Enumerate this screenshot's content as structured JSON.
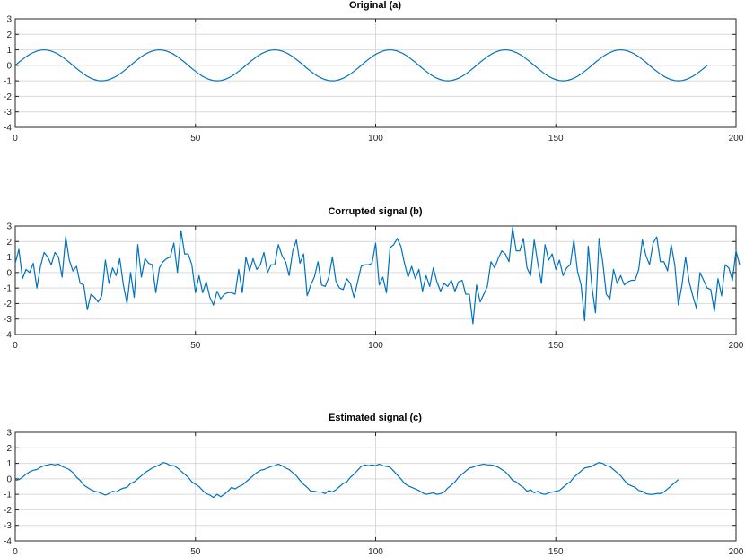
{
  "colors": {
    "series": "#0072BD"
  },
  "chart_data": [
    {
      "type": "line",
      "title": "Original (a)",
      "xlabel": "",
      "ylabel": "",
      "xlim": [
        0,
        200
      ],
      "ylim": [
        -4,
        3
      ],
      "xticks": [
        0,
        50,
        100,
        150,
        200
      ],
      "yticks": [
        3,
        2,
        1,
        0,
        -1,
        -2,
        -3,
        -4
      ],
      "grid": true,
      "series": [
        {
          "y": [
            0,
            0.2,
            0.38,
            0.56,
            0.71,
            0.83,
            0.92,
            0.98,
            1,
            0.98,
            0.92,
            0.83,
            0.71,
            0.56,
            0.38,
            0.2,
            0,
            -0.2,
            -0.38,
            -0.56,
            -0.71,
            -0.83,
            -0.92,
            -0.98,
            -1,
            -0.98,
            -0.92,
            -0.83,
            -0.71,
            -0.56,
            -0.38,
            -0.2,
            0,
            0.2,
            0.38,
            0.56,
            0.71,
            0.83,
            0.92,
            0.98,
            1,
            0.98,
            0.92,
            0.83,
            0.71,
            0.56,
            0.38,
            0.2,
            0,
            -0.2,
            -0.38,
            -0.56,
            -0.71,
            -0.83,
            -0.92,
            -0.98,
            -1,
            -0.98,
            -0.92,
            -0.83,
            -0.71,
            -0.56,
            -0.38,
            -0.2,
            0,
            0.2,
            0.38,
            0.56,
            0.71,
            0.83,
            0.92,
            0.98,
            1,
            0.98,
            0.92,
            0.83,
            0.71,
            0.56,
            0.38,
            0.2,
            0,
            -0.2,
            -0.38,
            -0.56,
            -0.71,
            -0.83,
            -0.92,
            -0.98,
            -1,
            -0.98,
            -0.92,
            -0.83,
            -0.71,
            -0.56,
            -0.38,
            -0.2,
            0,
            0.2,
            0.38,
            0.56,
            0.71,
            0.83,
            0.92,
            0.98,
            1,
            0.98,
            0.92,
            0.83,
            0.71,
            0.56,
            0.38,
            0.2,
            0,
            -0.2,
            -0.38,
            -0.56,
            -0.71,
            -0.83,
            -0.92,
            -0.98,
            -1,
            -0.98,
            -0.92,
            -0.83,
            -0.71,
            -0.56,
            -0.38,
            -0.2,
            0,
            0.2,
            0.38,
            0.56,
            0.71,
            0.83,
            0.92,
            0.98,
            1,
            0.98,
            0.92,
            0.83,
            0.71,
            0.56,
            0.38,
            0.2,
            0,
            -0.2,
            -0.38,
            -0.56,
            -0.71,
            -0.83,
            -0.92,
            -0.98,
            -1,
            -0.98,
            -0.92,
            -0.83,
            -0.71,
            -0.56,
            -0.38,
            -0.2,
            0,
            0.2,
            0.38,
            0.56,
            0.71,
            0.83,
            0.92,
            0.98,
            1,
            0.98,
            0.92,
            0.83,
            0.71,
            0.56,
            0.38,
            0.2,
            0,
            -0.2,
            -0.38,
            -0.56,
            -0.71,
            -0.83,
            -0.92,
            -0.98,
            -1,
            -0.98,
            -0.92,
            -0.83,
            -0.71,
            -0.56,
            -0.38,
            -0.2,
            0
          ]
        }
      ]
    },
    {
      "type": "line",
      "title": "Corrupted signal (b)",
      "xlabel": "",
      "ylabel": "",
      "xlim": [
        0,
        200
      ],
      "ylim": [
        -4,
        3
      ],
      "xticks": [
        0,
        50,
        100,
        150,
        200
      ],
      "yticks": [
        3,
        2,
        1,
        0,
        -1,
        -2,
        -3,
        -4
      ],
      "grid": true,
      "series": [
        {
          "y": [
            0.6,
            1.5,
            -0.4,
            0.2,
            0,
            0.6,
            -1,
            0.4,
            1.3,
            1,
            0.5,
            1.3,
            1,
            -0.3,
            2.3,
            0.8,
            0.1,
            0.4,
            -0.7,
            -0.8,
            -2.4,
            -1.4,
            -1.6,
            -1.9,
            -1.5,
            0.8,
            -0.7,
            0.3,
            -0.2,
            0.9,
            -0.8,
            -2,
            0,
            -1.6,
            1.8,
            -0.3,
            0.9,
            0.6,
            0.5,
            -1.3,
            0.3,
            0.7,
            0.9,
            1,
            1.9,
            0,
            2.7,
            1.2,
            1.2,
            0.5,
            -1.3,
            -0.2,
            -1.3,
            -0.6,
            -1.6,
            -2.1,
            -1.2,
            -1.7,
            -1.4,
            -1.3,
            -1.3,
            -1.4,
            0.2,
            -1.3,
            1,
            0.1,
            0.9,
            0.2,
            0.5,
            1.3,
            0,
            0.5,
            0.5,
            1.8,
            1.1,
            0.7,
            -0.2,
            1.4,
            2.1,
            0.6,
            1.2,
            -1.5,
            -0.8,
            -0.3,
            0.7,
            -0.8,
            -0.9,
            -0.3,
            1,
            -0.6,
            -1,
            -1.1,
            -0.4,
            -0.7,
            -1.6,
            -0.6,
            0.4,
            0.5,
            0.5,
            0.6,
            1.9,
            -0.8,
            -0.3,
            -1.3,
            1.6,
            1.8,
            2.2,
            1.7,
            0.6,
            -0.3,
            0.4,
            -0.4,
            0.2,
            -1.2,
            -0.2,
            -0.9,
            0.3,
            -0.6,
            -1.2,
            -0.7,
            -0.9,
            -0.5,
            -1.2,
            -0.6,
            -0.5,
            -1.4,
            -1.4,
            -3.3,
            -0.8,
            -1.9,
            -1.4,
            -0.9,
            0.7,
            0.3,
            0.9,
            1.4,
            1.2,
            0.7,
            2.9,
            1.4,
            1.4,
            2.2,
            0.3,
            -0.2,
            2.1,
            0.6,
            -0.7,
            1.8,
            0.8,
            1.2,
            0.2,
            0.8,
            -0.2,
            0.3,
            0.5,
            2.1,
            0.1,
            -0.8,
            -3.1,
            1.7,
            -0.9,
            -2.6,
            2.2,
            0.7,
            -1.4,
            -1.7,
            0.2,
            -0.7,
            -0.2,
            -0.8,
            -0.6,
            -0.5,
            -0.5,
            0.2,
            2.1,
            1.1,
            0.5,
            1.9,
            2.3,
            0.7,
            0.7,
            0.1,
            1.8,
            0.5,
            -2.1,
            -0.8,
            1,
            -0.6,
            -1.5,
            -2.3,
            0,
            -0.5,
            -1,
            -1.1,
            -2.5,
            -0.4,
            -1.5,
            0.5,
            0.3,
            -0.5,
            1.4,
            0.5
          ]
        }
      ]
    },
    {
      "type": "line",
      "title": "Estimated signal (c)",
      "xlabel": "",
      "ylabel": "",
      "xlim": [
        0,
        200
      ],
      "ylim": [
        -4,
        3
      ],
      "xticks": [
        0,
        50,
        100,
        150,
        200
      ],
      "yticks": [
        3,
        2,
        1,
        0,
        -1,
        -2,
        -3,
        -4
      ],
      "grid": true,
      "series": [
        {
          "y": [
            -0.1,
            -0.05,
            0.1,
            0.3,
            0.45,
            0.55,
            0.6,
            0.75,
            0.85,
            0.9,
            0.95,
            0.9,
            0.95,
            0.8,
            0.7,
            0.6,
            0.4,
            0.1,
            -0.1,
            -0.4,
            -0.55,
            -0.7,
            -0.8,
            -0.85,
            -0.95,
            -1.05,
            -0.95,
            -0.8,
            -0.85,
            -0.7,
            -0.6,
            -0.55,
            -0.3,
            -0.2,
            0,
            0.2,
            0.4,
            0.55,
            0.7,
            0.8,
            0.9,
            1.05,
            1.0,
            0.85,
            0.85,
            0.7,
            0.5,
            0.3,
            0.1,
            -0.2,
            -0.35,
            -0.5,
            -0.75,
            -0.95,
            -1.05,
            -1.2,
            -1.0,
            -1.15,
            -1.0,
            -0.8,
            -0.55,
            -0.65,
            -0.5,
            -0.4,
            -0.2,
            0,
            0.2,
            0.4,
            0.55,
            0.6,
            0.7,
            0.8,
            0.85,
            0.95,
            0.85,
            0.7,
            0.6,
            0.4,
            0.2,
            -0.1,
            -0.35,
            -0.55,
            -0.8,
            -0.8,
            -0.85,
            -0.85,
            -0.95,
            -0.75,
            -0.85,
            -0.7,
            -0.5,
            -0.3,
            -0.2,
            0.1,
            0.3,
            0.55,
            0.8,
            0.9,
            0.85,
            0.9,
            0.85,
            0.95,
            0.85,
            0.8,
            0.75,
            0.5,
            0.25,
            0,
            -0.3,
            -0.45,
            -0.55,
            -0.65,
            -0.75,
            -0.9,
            -1.0,
            -0.95,
            -0.9,
            -1.0,
            -0.95,
            -0.85,
            -0.6,
            -0.4,
            -0.2,
            0.1,
            0.3,
            0.5,
            0.7,
            0.75,
            0.85,
            0.9,
            0.95,
            0.9,
            0.9,
            0.85,
            0.75,
            0.6,
            0.45,
            0.2,
            -0.1,
            -0.2,
            -0.4,
            -0.55,
            -0.8,
            -0.7,
            -0.9,
            -0.8,
            -0.95,
            -1.0,
            -0.9,
            -0.85,
            -0.8,
            -0.75,
            -0.55,
            -0.35,
            -0.2,
            0.1,
            0.3,
            0.5,
            0.7,
            0.75,
            0.8,
            0.95,
            1.05,
            1.0,
            0.85,
            0.8,
            0.6,
            0.4,
            0.2,
            -0.1,
            -0.35,
            -0.45,
            -0.55,
            -0.75,
            -0.8,
            -0.95,
            -1.0,
            -1.0,
            -0.95,
            -0.95,
            -0.85,
            -0.65,
            -0.45,
            -0.25,
            -0.05
          ]
        }
      ]
    }
  ]
}
